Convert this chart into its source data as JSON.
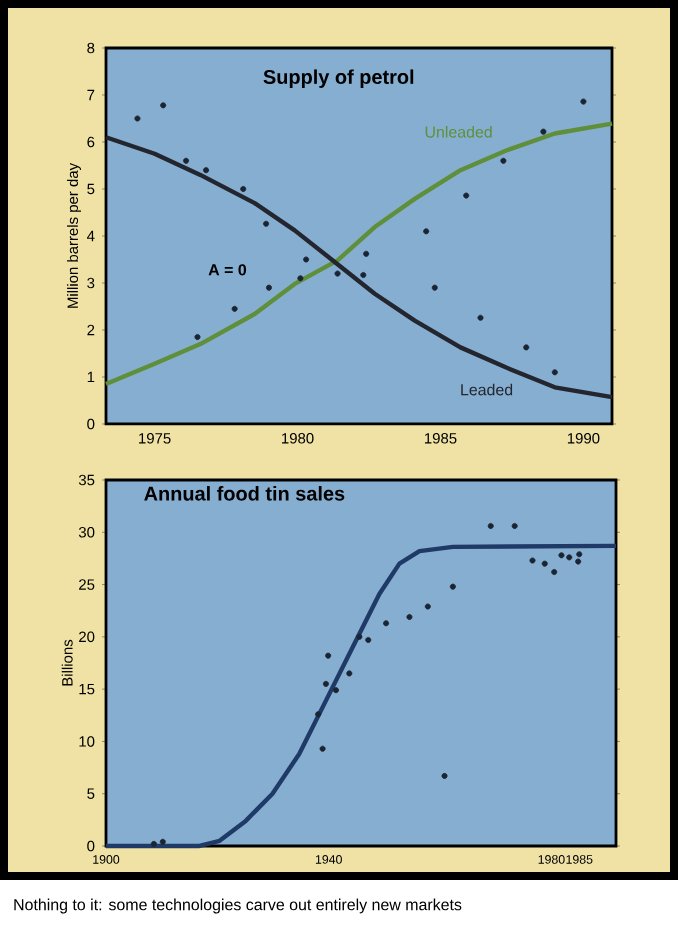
{
  "chart_data": [
    {
      "type": "line",
      "title": "Supply of petrol",
      "ylabel": "Million barrels per day",
      "xlim": [
        1973.3,
        1991
      ],
      "ylim": [
        0,
        8
      ],
      "xticks": [
        1975,
        1980,
        1985,
        1990
      ],
      "yticks": [
        0,
        1,
        2,
        3,
        4,
        5,
        6,
        7,
        8
      ],
      "legend": false,
      "annotations": [
        "A = 0"
      ],
      "series": [
        {
          "name": "Unleaded",
          "color": "#5f8f3a",
          "x": [
            1973.3,
            1975,
            1976.6,
            1978.5,
            1979.9,
            1981.4,
            1982.7,
            1984.1,
            1985.7,
            1987.3,
            1989,
            1991
          ],
          "values": [
            0.85,
            1.28,
            1.7,
            2.34,
            2.98,
            3.48,
            4.19,
            4.79,
            5.4,
            5.82,
            6.18,
            6.39
          ]
        },
        {
          "name": "Leaded",
          "color": "#23262e",
          "x": [
            1973.3,
            1975,
            1976.6,
            1978.5,
            1979.9,
            1981.4,
            1982.7,
            1984.1,
            1985.7,
            1987.3,
            1989,
            1991
          ],
          "values": [
            6.1,
            5.75,
            5.3,
            4.7,
            4.12,
            3.4,
            2.77,
            2.2,
            1.63,
            1.2,
            0.78,
            0.57
          ]
        },
        {
          "type": "scatter",
          "marker": "circle",
          "color": "#1a2433",
          "x": [
            1974.4,
            1975.3,
            1976.1,
            1976.8,
            1978.1,
            1978.9,
            1980.3,
            1981.4,
            1976.5,
            1977.8,
            1979.0,
            1980.1,
            1982.4,
            1982.3,
            1984.5,
            1984.8,
            1985.9,
            1986.4,
            1988.0,
            1989.0,
            1987.2,
            1988.6,
            1990.0
          ],
          "values": [
            6.5,
            6.78,
            5.6,
            5.4,
            5.0,
            4.26,
            3.5,
            3.2,
            1.85,
            2.45,
            2.9,
            3.1,
            3.62,
            3.17,
            4.1,
            2.9,
            4.86,
            2.26,
            1.63,
            1.1,
            5.6,
            6.22,
            6.86
          ]
        }
      ]
    },
    {
      "type": "scatter",
      "title": "Annual food tin sales",
      "ylabel": "Billions",
      "xlim": [
        1900,
        1991.6
      ],
      "ylim": [
        0,
        35
      ],
      "xticks": [
        1900,
        1940,
        1980,
        1985
      ],
      "yticks": [
        0,
        5,
        10,
        15,
        20,
        25,
        30,
        35
      ],
      "legend": false,
      "annotations": [
        "Nothing to it: some technologies carve out entirely new markets"
      ],
      "series": [
        {
          "marker": "circle",
          "color": "#1a2433",
          "x": [
            1908.6,
            1910.2,
            1938.1,
            1938.9,
            1939.9,
            1939.5,
            1941.3,
            1943.7,
            1945.5,
            1947.1,
            1950.3,
            1954.5,
            1957.8,
            1960.8,
            1962.3,
            1969.1,
            1973.4,
            1976.6,
            1978.8,
            1980.5,
            1981.8,
            1983.2,
            1985.0,
            1984.8
          ],
          "values": [
            0.2,
            0.4,
            12.6,
            9.3,
            18.2,
            15.5,
            14.9,
            16.5,
            20.0,
            19.7,
            21.3,
            21.9,
            22.9,
            6.7,
            24.8,
            30.6,
            30.6,
            27.3,
            27.0,
            26.2,
            27.8,
            27.6,
            27.9,
            27.2
          ]
        },
        {
          "type": "line",
          "color": "#1f3a66",
          "x": [
            1900,
            1916.8,
            1920.4,
            1925.1,
            1929.9,
            1934.7,
            1939.5,
            1944.3,
            1949.1,
            1952.7,
            1956.3,
            1962.3,
            1991.6
          ],
          "values": [
            0,
            0,
            0.5,
            2.4,
            5.0,
            8.8,
            13.9,
            19.0,
            24.1,
            27.0,
            28.2,
            28.6,
            28.7
          ]
        }
      ]
    }
  ]
}
